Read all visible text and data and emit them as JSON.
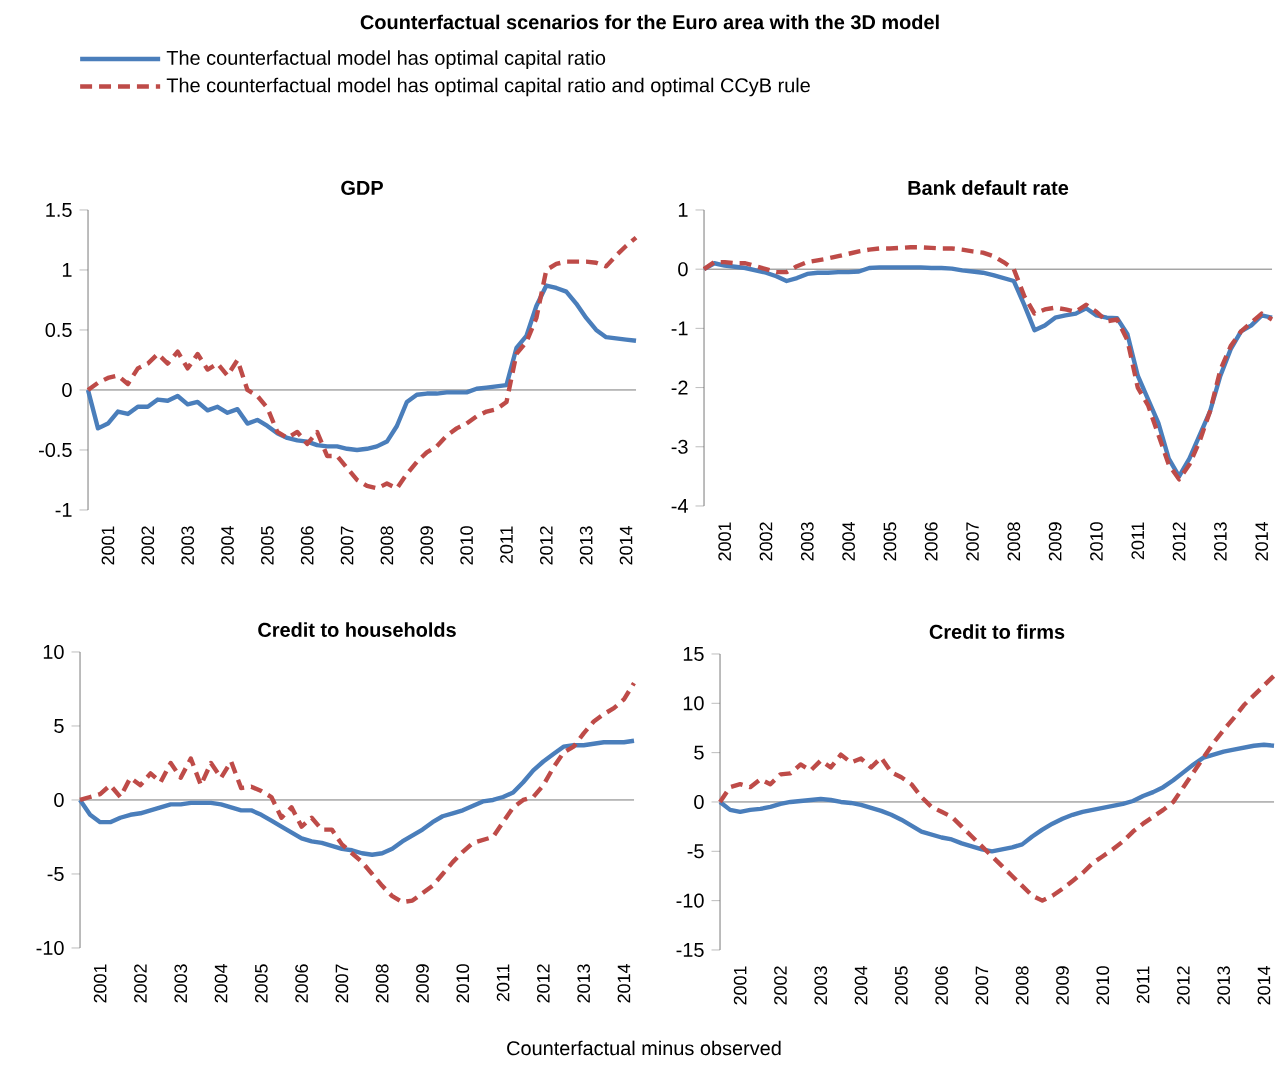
{
  "chart_data": [
    {
      "type": "other",
      "title": "Counterfactual scenarios for the Euro area with the 3D model",
      "annotations": [
        "Counterfactual minus observed"
      ]
    },
    {
      "type": "line",
      "title": "GDP",
      "legend": "top",
      "categories": [
        null,
        null,
        "2001",
        null,
        null,
        null,
        "2002",
        null,
        null,
        null,
        "2003",
        null,
        null,
        null,
        "2004",
        null,
        null,
        null,
        "2005",
        null,
        null,
        null,
        "2006",
        null,
        null,
        null,
        "2007",
        null,
        null,
        null,
        "2008",
        null,
        null,
        null,
        "2009",
        null,
        null,
        null,
        "2010",
        null,
        null,
        null,
        "2011",
        null,
        null,
        null,
        "2012",
        null,
        null,
        null,
        "2013",
        null,
        null,
        null,
        "2014",
        null
      ],
      "ylim": [
        -1,
        1.5
      ],
      "yticks": [
        -1,
        -0.5,
        0,
        0.5,
        1,
        1.5
      ],
      "series": [
        {
          "name": "The counterfactual model has optimal capital ratio",
          "color": "#4a7ebb",
          "line_style": "solid",
          "values": [
            0,
            -0.32,
            -0.28,
            -0.18,
            -0.2,
            -0.14,
            -0.14,
            -0.08,
            -0.09,
            -0.05,
            -0.12,
            -0.1,
            -0.17,
            -0.14,
            -0.19,
            -0.16,
            -0.28,
            -0.25,
            -0.3,
            -0.36,
            -0.4,
            -0.42,
            -0.43,
            -0.46,
            -0.47,
            -0.47,
            -0.49,
            -0.5,
            -0.49,
            -0.47,
            -0.43,
            -0.3,
            -0.1,
            -0.04,
            -0.03,
            -0.03,
            -0.02,
            -0.02,
            -0.02,
            0.01,
            0.02,
            0.03,
            0.04,
            0.35,
            0.45,
            0.7,
            0.87,
            0.85,
            0.82,
            0.72,
            0.6,
            0.5,
            0.44,
            0.43,
            0.42,
            0.41
          ]
        },
        {
          "name": "The counterfactual model has optimal capital ratio and optimal CCyB rule",
          "color": "#be4b48",
          "line_style": "dashed",
          "values": [
            0,
            0.06,
            0.1,
            0.12,
            0.05,
            0.18,
            0.22,
            0.3,
            0.22,
            0.32,
            0.18,
            0.3,
            0.17,
            0.22,
            0.12,
            0.25,
            0,
            -0.05,
            -0.15,
            -0.35,
            -0.4,
            -0.35,
            -0.45,
            -0.35,
            -0.55,
            -0.55,
            -0.65,
            -0.75,
            -0.8,
            -0.82,
            -0.78,
            -0.82,
            -0.7,
            -0.6,
            -0.52,
            -0.47,
            -0.38,
            -0.32,
            -0.28,
            -0.22,
            -0.18,
            -0.16,
            -0.1,
            0.3,
            0.4,
            0.6,
            1,
            1.05,
            1.07,
            1.07,
            1.07,
            1.06,
            1.03,
            1.12,
            1.2,
            1.27
          ]
        }
      ]
    },
    {
      "type": "line",
      "title": "Bank default rate",
      "categories": [
        null,
        null,
        "2001",
        null,
        null,
        null,
        "2002",
        null,
        null,
        null,
        "2003",
        null,
        null,
        null,
        "2004",
        null,
        null,
        null,
        "2005",
        null,
        null,
        null,
        "2006",
        null,
        null,
        null,
        "2007",
        null,
        null,
        null,
        "2008",
        null,
        null,
        null,
        "2009",
        null,
        null,
        null,
        "2010",
        null,
        null,
        null,
        "2011",
        null,
        null,
        null,
        "2012",
        null,
        null,
        null,
        "2013",
        null,
        null,
        null,
        "2014",
        null
      ],
      "ylim": [
        -4,
        1
      ],
      "yticks": [
        -4,
        -3,
        -2,
        -1,
        0,
        1
      ],
      "series": [
        {
          "color": "#4a7ebb",
          "line_style": "solid",
          "values": [
            0,
            0.1,
            0.06,
            0.04,
            0.02,
            -0.02,
            -0.06,
            -0.12,
            -0.2,
            -0.15,
            -0.08,
            -0.06,
            -0.06,
            -0.05,
            -0.05,
            -0.04,
            0.02,
            0.03,
            0.03,
            0.03,
            0.03,
            0.03,
            0.02,
            0.02,
            0.01,
            -0.02,
            -0.04,
            -0.06,
            -0.1,
            -0.15,
            -0.2,
            -0.6,
            -1.03,
            -0.95,
            -0.82,
            -0.78,
            -0.75,
            -0.66,
            -0.78,
            -0.82,
            -0.83,
            -1.1,
            -1.8,
            -2.2,
            -2.6,
            -3.2,
            -3.5,
            -3.2,
            -2.8,
            -2.4,
            -1.8,
            -1.35,
            -1.05,
            -0.95,
            -0.78,
            -0.82
          ]
        },
        {
          "color": "#be4b48",
          "line_style": "dashed",
          "values": [
            0,
            0.12,
            0.12,
            0.1,
            0.1,
            0.05,
            0,
            -0.05,
            -0.05,
            0.05,
            0.12,
            0.15,
            0.18,
            0.22,
            0.26,
            0.3,
            0.33,
            0.35,
            0.35,
            0.36,
            0.37,
            0.37,
            0.36,
            0.35,
            0.35,
            0.33,
            0.3,
            0.28,
            0.22,
            0.12,
            0,
            -0.45,
            -0.75,
            -0.68,
            -0.65,
            -0.68,
            -0.72,
            -0.6,
            -0.72,
            -0.88,
            -0.85,
            -1.2,
            -2,
            -2.3,
            -2.8,
            -3.3,
            -3.55,
            -3.3,
            -2.9,
            -2.4,
            -1.7,
            -1.3,
            -1.05,
            -0.9,
            -0.75,
            -0.85
          ]
        }
      ]
    },
    {
      "type": "line",
      "title": "Credit to households",
      "categories": [
        null,
        null,
        "2001",
        null,
        null,
        null,
        "2002",
        null,
        null,
        null,
        "2003",
        null,
        null,
        null,
        "2004",
        null,
        null,
        null,
        "2005",
        null,
        null,
        null,
        "2006",
        null,
        null,
        null,
        "2007",
        null,
        null,
        null,
        "2008",
        null,
        null,
        null,
        "2009",
        null,
        null,
        null,
        "2010",
        null,
        null,
        null,
        "2011",
        null,
        null,
        null,
        "2012",
        null,
        null,
        null,
        "2013",
        null,
        null,
        null,
        "2014",
        null
      ],
      "ylim": [
        -10,
        10
      ],
      "yticks": [
        -10,
        -5,
        0,
        5,
        10
      ],
      "series": [
        {
          "color": "#4a7ebb",
          "line_style": "solid",
          "values": [
            0,
            -1,
            -1.5,
            -1.5,
            -1.2,
            -1,
            -0.9,
            -0.7,
            -0.5,
            -0.3,
            -0.3,
            -0.2,
            -0.2,
            -0.2,
            -0.3,
            -0.5,
            -0.7,
            -0.7,
            -1,
            -1.4,
            -1.8,
            -2.2,
            -2.6,
            -2.8,
            -2.9,
            -3.1,
            -3.3,
            -3.4,
            -3.6,
            -3.7,
            -3.6,
            -3.3,
            -2.8,
            -2.4,
            -2,
            -1.5,
            -1.1,
            -0.9,
            -0.7,
            -0.4,
            -0.1,
            0,
            0.2,
            0.5,
            1.2,
            2,
            2.6,
            3.1,
            3.6,
            3.7,
            3.7,
            3.8,
            3.9,
            3.9,
            3.9,
            4
          ]
        },
        {
          "color": "#be4b48",
          "line_style": "dashed",
          "values": [
            0,
            0.2,
            0.4,
            1,
            0.2,
            1.5,
            1,
            1.8,
            1.2,
            2.5,
            1.5,
            2.8,
            1,
            2.5,
            1.5,
            2.6,
            0.8,
            0.9,
            0.6,
            0.2,
            -1.2,
            -0.5,
            -1.8,
            -1.2,
            -2,
            -2,
            -3,
            -3.6,
            -4.2,
            -5,
            -5.8,
            -6.5,
            -6.9,
            -6.8,
            -6.3,
            -5.8,
            -5,
            -4.2,
            -3.5,
            -2.9,
            -2.7,
            -2.5,
            -1.5,
            -0.5,
            0,
            0.2,
            1,
            2.2,
            3.2,
            3.6,
            4.5,
            5.3,
            5.8,
            6.2,
            6.8,
            7.9
          ]
        }
      ]
    },
    {
      "type": "line",
      "title": "Credit to firms",
      "categories": [
        null,
        null,
        "2001",
        null,
        null,
        null,
        "2002",
        null,
        null,
        null,
        "2003",
        null,
        null,
        null,
        "2004",
        null,
        null,
        null,
        "2005",
        null,
        null,
        null,
        "2006",
        null,
        null,
        null,
        "2007",
        null,
        null,
        null,
        "2008",
        null,
        null,
        null,
        "2009",
        null,
        null,
        null,
        "2010",
        null,
        null,
        null,
        "2011",
        null,
        null,
        null,
        "2012",
        null,
        null,
        null,
        "2013",
        null,
        null,
        null,
        "2014",
        null
      ],
      "ylim": [
        -15,
        15
      ],
      "yticks": [
        -15,
        -10,
        -5,
        0,
        5,
        10,
        15
      ],
      "series": [
        {
          "color": "#4a7ebb",
          "line_style": "solid",
          "values": [
            0,
            -0.8,
            -1,
            -0.8,
            -0.7,
            -0.5,
            -0.2,
            0,
            0.1,
            0.2,
            0.3,
            0.2,
            0,
            -0.1,
            -0.3,
            -0.6,
            -0.9,
            -1.3,
            -1.8,
            -2.4,
            -3,
            -3.3,
            -3.6,
            -3.8,
            -4.2,
            -4.5,
            -4.8,
            -5,
            -4.8,
            -4.6,
            -4.3,
            -3.5,
            -2.8,
            -2.2,
            -1.7,
            -1.3,
            -1,
            -0.8,
            -0.6,
            -0.4,
            -0.2,
            0.1,
            0.6,
            1,
            1.5,
            2.2,
            3,
            3.8,
            4.5,
            4.8,
            5.1,
            5.3,
            5.5,
            5.7,
            5.8,
            5.7
          ]
        },
        {
          "color": "#be4b48",
          "line_style": "dashed",
          "values": [
            0,
            1.5,
            1.8,
            1.5,
            2.3,
            1.8,
            2.8,
            2.9,
            3.8,
            3.2,
            4.2,
            3.5,
            4.8,
            4,
            4.4,
            3.5,
            4.5,
            3,
            2.5,
            1.8,
            0.5,
            -0.5,
            -1,
            -1.5,
            -2.5,
            -3.5,
            -4.5,
            -5.5,
            -6.5,
            -7.5,
            -8.5,
            -9.5,
            -10,
            -9.5,
            -8.8,
            -8,
            -7.2,
            -6.2,
            -5.5,
            -4.8,
            -4,
            -3,
            -2.2,
            -1.5,
            -0.8,
            0,
            1.5,
            3,
            4.5,
            6,
            7.3,
            8.5,
            9.8,
            10.8,
            11.8,
            12.8
          ]
        }
      ]
    }
  ]
}
